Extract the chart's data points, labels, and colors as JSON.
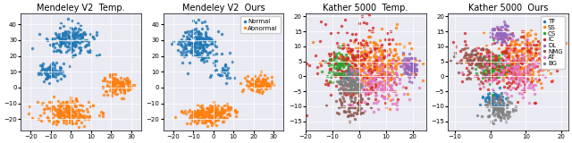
{
  "mendeley_temp_title": "Mendeley V2  Temp.",
  "mendeley_ours_title": "Mendeley V2  Ours",
  "kather_temp_title": "Kather 5000  Temp.",
  "kather_ours_title": "Kather 5000  Ours",
  "mendeley_xlim": [
    -25,
    35
  ],
  "mendeley_ylim": [
    -27,
    47
  ],
  "kather_temp_xlim": [
    -20,
    25
  ],
  "kather_temp_ylim": [
    -18,
    21
  ],
  "kather_ours_xlim": [
    -12,
    22
  ],
  "kather_ours_ylim": [
    -18,
    21
  ],
  "normal_color": "#1f77b4",
  "abnormal_color": "#ff7f0e",
  "kather_colors": {
    "TF": "#1f77b4",
    "SS": "#ff7f0e",
    "CS": "#2ca02c",
    "IC": "#d62728",
    "DL": "#9467bd",
    "NMG": "#8c564b",
    "AT": "#e377c2",
    "BG": "#7f7f7f"
  },
  "title_fontsize": 7,
  "legend_fontsize": 5,
  "tick_labelsize": 5,
  "marker_size_mendeley": 6,
  "marker_size_kather": 6,
  "bg_color": "#eaeaf2"
}
